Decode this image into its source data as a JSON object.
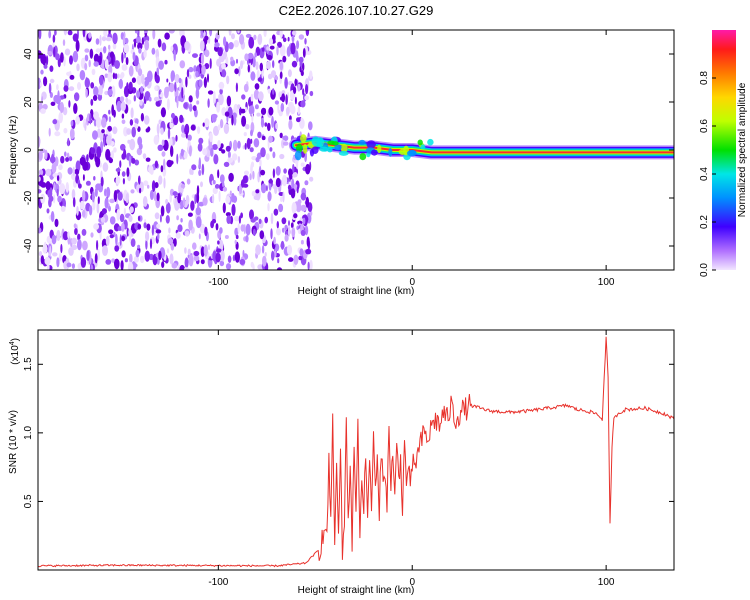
{
  "title": "C2E2.2026.107.10.27.G29",
  "colors": {
    "snr_line": "#e8322c",
    "noise": "#7a18e6",
    "axis": "#000000"
  },
  "chart_data": [
    {
      "type": "heatmap",
      "name": "spectrogram",
      "xlabel": "Height of straight line (km)",
      "ylabel": "Frequency (Hz)",
      "xlim": [
        -193,
        135
      ],
      "ylim": [
        -50,
        50
      ],
      "x_ticks": [
        -100,
        0,
        100
      ],
      "y_ticks": [
        -40,
        -20,
        0,
        20,
        40
      ],
      "noise_region_x": [
        -193,
        -55
      ],
      "signal_track": {
        "x": [
          -60,
          -50,
          -40,
          -30,
          -20,
          -10,
          0,
          10,
          20,
          40,
          60,
          80,
          90,
          95,
          100,
          105,
          120,
          135
        ],
        "y": [
          2,
          3,
          2,
          1,
          1,
          0,
          0,
          -1,
          -1,
          -1,
          -1,
          -1,
          -1,
          -1,
          -1,
          -1,
          -1,
          -1
        ]
      },
      "colorbar": {
        "label": "Normalized spectral amplitude",
        "range": [
          0,
          1
        ],
        "ticks": [
          0.0,
          0.2,
          0.4,
          0.6,
          0.8
        ],
        "tick_labels": [
          "0.0",
          "0.2",
          "0.4",
          "0.6",
          "0.8"
        ]
      }
    },
    {
      "type": "line",
      "name": "snr",
      "xlabel": "Height of straight line (km)",
      "ylabel": "SNR (10 * v/v)",
      "multiplier": "(x10",
      "multiplier_exp": "4",
      "xlim": [
        -193,
        135
      ],
      "ylim": [
        0,
        17500
      ],
      "x_ticks": [
        -100,
        0,
        100
      ],
      "y_ticks": [
        5000,
        10000,
        15000
      ],
      "y_tick_labels": [
        "0.5",
        "1.0",
        "1.5"
      ],
      "series": [
        {
          "x": [
            -193,
            -150,
            -100,
            -70,
            -55,
            -48,
            -45,
            -44,
            -43,
            -42,
            -41,
            -40,
            -39,
            -38,
            -37,
            -36,
            -35,
            -34,
            -33,
            -32,
            -31,
            -30,
            -29,
            -28,
            -27,
            -26,
            -25,
            -24,
            -23,
            -22,
            -21,
            -20,
            -19,
            -18,
            -17,
            -16,
            -15,
            -14,
            -13,
            -12,
            -11,
            -10,
            -9,
            -8,
            -7,
            -6,
            -5,
            -4,
            -3,
            -2,
            -1,
            0,
            2,
            4,
            6,
            8,
            10,
            12,
            14,
            16,
            18,
            20,
            22,
            25,
            30,
            35,
            40,
            50,
            60,
            70,
            80,
            85,
            90,
            95,
            98,
            100,
            101,
            102,
            103,
            104,
            106,
            110,
            120,
            130,
            135
          ],
          "y": [
            300,
            350,
            320,
            300,
            500,
            1500,
            3000,
            2000,
            8500,
            3000,
            12000,
            1500,
            7000,
            2500,
            9000,
            500,
            4000,
            11000,
            3000,
            8000,
            2000,
            9500,
            3500,
            11500,
            2000,
            7000,
            4500,
            9000,
            3000,
            8500,
            4000,
            10500,
            5500,
            8000,
            3500,
            9000,
            6000,
            7500,
            5000,
            10000,
            6500,
            8500,
            5000,
            9000,
            7000,
            8000,
            4500,
            9500,
            6000,
            8000,
            5500,
            7500,
            8000,
            9000,
            10000,
            9500,
            10500,
            11000,
            10500,
            11500,
            11000,
            12000,
            11000,
            11500,
            12000,
            11800,
            11600,
            11500,
            11600,
            11800,
            12000,
            11700,
            11600,
            11400,
            11000,
            17000,
            14000,
            3300,
            9000,
            11000,
            11400,
            11700,
            11800,
            11400,
            11000
          ]
        }
      ]
    }
  ]
}
